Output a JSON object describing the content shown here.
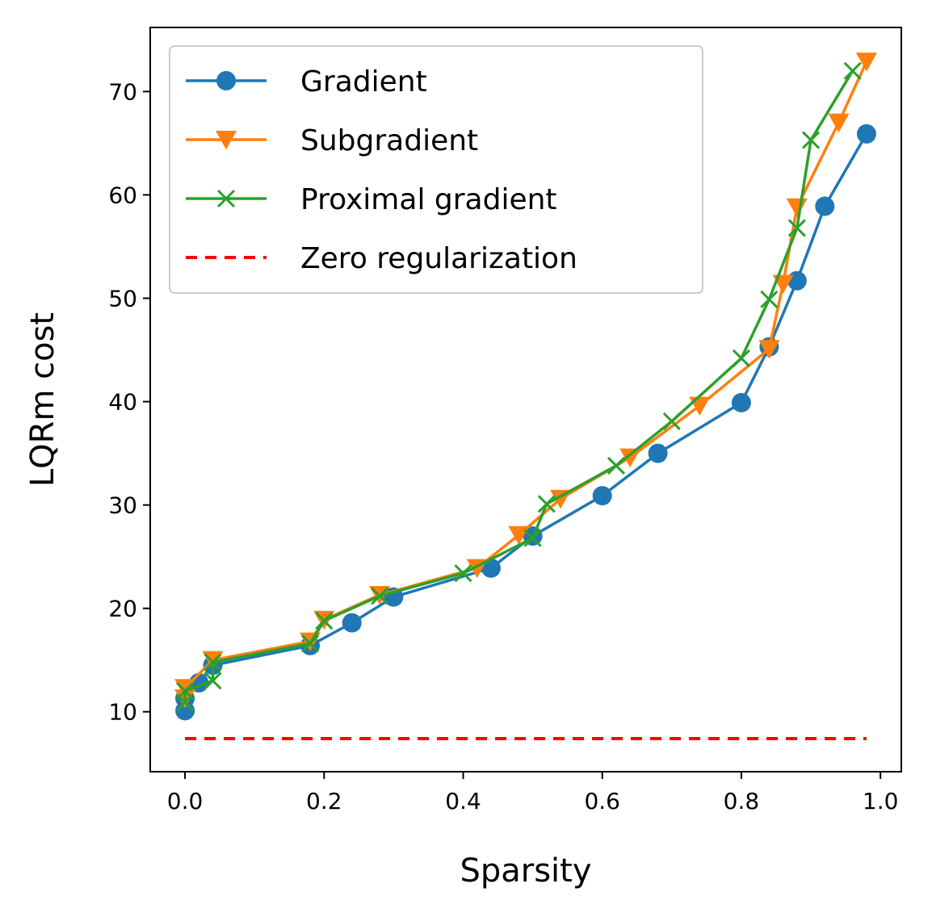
{
  "chart_data": {
    "type": "line",
    "title": "",
    "xlabel": "Sparsity",
    "ylabel": "LQRm cost",
    "xlim": [
      -0.05,
      1.03
    ],
    "ylim": [
      4.2,
      76.2
    ],
    "xticks": [
      0.0,
      0.2,
      0.4,
      0.6,
      0.8,
      1.0
    ],
    "xtick_labels": [
      "0.0",
      "0.2",
      "0.4",
      "0.6",
      "0.8",
      "1.0"
    ],
    "yticks": [
      10,
      20,
      30,
      40,
      50,
      60,
      70
    ],
    "ytick_labels": [
      "10",
      "20",
      "30",
      "40",
      "50",
      "60",
      "70"
    ],
    "grid": false,
    "legend_position": "top-left",
    "series": [
      {
        "name": "Gradient",
        "color": "#1f77b4",
        "marker": "circle",
        "linestyle": "solid",
        "x": [
          0.0,
          0.0,
          0.02,
          0.04,
          0.18,
          0.24,
          0.3,
          0.44,
          0.5,
          0.6,
          0.68,
          0.8,
          0.84,
          0.88,
          0.92,
          0.98
        ],
        "y": [
          10.1,
          11.3,
          12.8,
          14.5,
          16.4,
          18.6,
          21.1,
          23.9,
          27.0,
          30.9,
          35.0,
          39.9,
          45.3,
          51.7,
          58.9,
          65.9
        ]
      },
      {
        "name": "Subgradient",
        "color": "#ff7f0e",
        "marker": "triangle-down",
        "linestyle": "solid",
        "x": [
          0.0,
          0.0,
          0.04,
          0.18,
          0.2,
          0.28,
          0.42,
          0.48,
          0.54,
          0.64,
          0.74,
          0.84,
          0.86,
          0.88,
          0.94,
          0.98
        ],
        "y": [
          11.3,
          12.3,
          15.0,
          16.8,
          18.9,
          21.3,
          23.9,
          27.1,
          30.6,
          34.6,
          39.6,
          45.1,
          51.4,
          58.8,
          67.0,
          72.9
        ]
      },
      {
        "name": "Proximal gradient",
        "color": "#2ca02c",
        "marker": "x",
        "linestyle": "solid",
        "x": [
          0.0,
          0.0,
          0.04,
          0.04,
          0.18,
          0.2,
          0.28,
          0.4,
          0.5,
          0.52,
          0.62,
          0.7,
          0.8,
          0.84,
          0.88,
          0.9,
          0.96
        ],
        "y": [
          10.9,
          12.0,
          13.0,
          14.8,
          16.6,
          18.8,
          21.2,
          23.4,
          26.8,
          30.1,
          33.8,
          38.1,
          44.2,
          49.9,
          56.8,
          65.3,
          72.0
        ]
      },
      {
        "name": "Zero regularization",
        "color": "#ff0000",
        "marker": "none",
        "linestyle": "dashed",
        "x": [
          0.0,
          0.98
        ],
        "y": [
          7.4,
          7.4
        ]
      }
    ]
  }
}
